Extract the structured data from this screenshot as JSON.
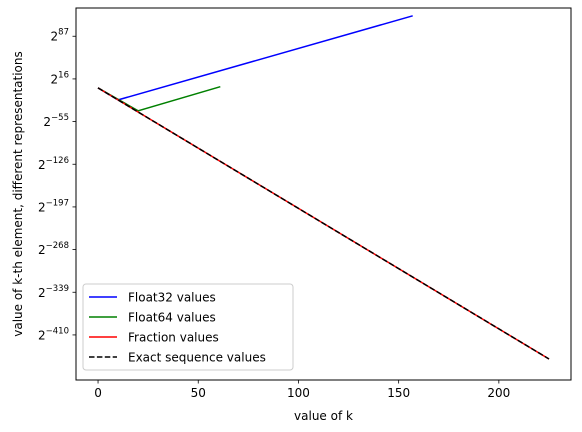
{
  "chart_data": {
    "type": "line",
    "title": "",
    "xlabel": "value of k",
    "ylabel": "value of k-th element, different representations",
    "xlim": [
      -11,
      236
    ],
    "ylim_log2": [
      -485,
      134
    ],
    "y_scale": "log base 2",
    "grid": false,
    "legend_position": "lower left",
    "x_ticks": [
      0,
      50,
      100,
      150,
      200
    ],
    "y_ticks": [
      {
        "base": "2",
        "exp": "87",
        "value_log2": 87
      },
      {
        "base": "2",
        "exp": "16",
        "value_log2": 16
      },
      {
        "base": "2",
        "exp": "−55",
        "value_log2": -55
      },
      {
        "base": "2",
        "exp": "−126",
        "value_log2": -126
      },
      {
        "base": "2",
        "exp": "−197",
        "value_log2": -197
      },
      {
        "base": "2",
        "exp": "−268",
        "value_log2": -268
      },
      {
        "base": "2",
        "exp": "−339",
        "value_log2": -339
      },
      {
        "base": "2",
        "exp": "−410",
        "value_log2": -410
      }
    ],
    "series": [
      {
        "name": "Float32 values",
        "color": "#0000ff",
        "dash": "solid",
        "points": [
          [
            0,
            1
          ],
          [
            10,
            -19
          ],
          [
            157,
            121
          ]
        ]
      },
      {
        "name": "Float64 values",
        "color": "#008000",
        "dash": "solid",
        "points": [
          [
            0,
            1
          ],
          [
            20,
            -37
          ],
          [
            61,
            3
          ]
        ]
      },
      {
        "name": "Fraction values",
        "color": "#ff0000",
        "dash": "solid",
        "points": [
          [
            0,
            1
          ],
          [
            225,
            -450
          ]
        ]
      },
      {
        "name": "Exact sequence values",
        "color": "#000000",
        "dash": "dashed",
        "points": [
          [
            0,
            1
          ],
          [
            225,
            -450
          ]
        ]
      }
    ]
  }
}
